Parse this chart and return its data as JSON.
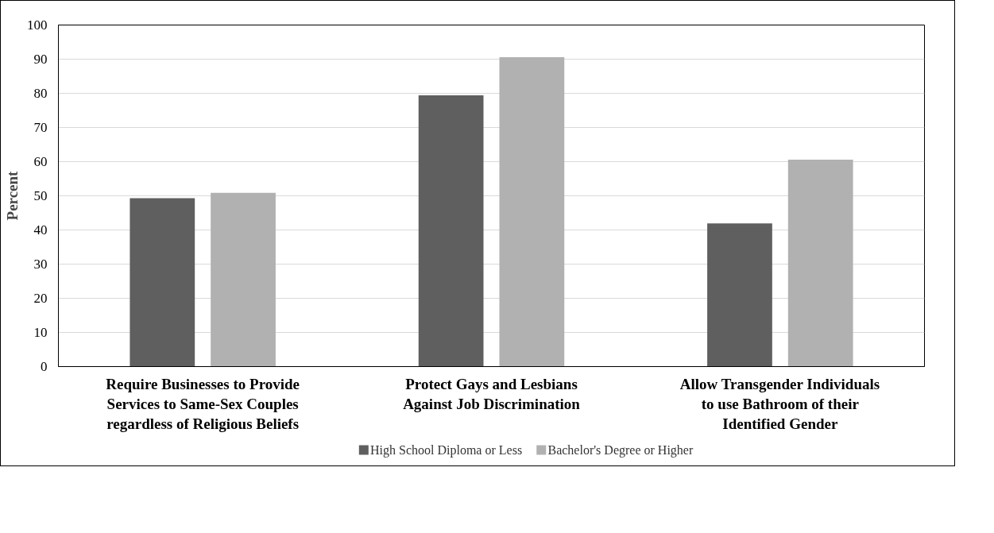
{
  "chart_data": {
    "type": "bar",
    "ylabel": "Percent",
    "categories": [
      "Require Businesses to Provide Services to Same-Sex Couples regardless of Religious Beliefs",
      "Protect Gays and Lesbians Against Job Discrimination",
      "Allow Transgender Individuals to use Bathroom of their Identified Gender"
    ],
    "series": [
      {
        "name": "High School Diploma or Less",
        "color": "#5f5f5f",
        "values": [
          49.3,
          79.4,
          41.9
        ]
      },
      {
        "name": "Bachelor's Degree or Higher",
        "color": "#b1b1b1",
        "values": [
          50.9,
          90.6,
          60.6
        ]
      }
    ],
    "ylim": [
      0,
      100
    ],
    "yticks": [
      0,
      10,
      20,
      30,
      40,
      50,
      60,
      70,
      80,
      90,
      100
    ],
    "grid": "y",
    "legend": "bottom"
  }
}
